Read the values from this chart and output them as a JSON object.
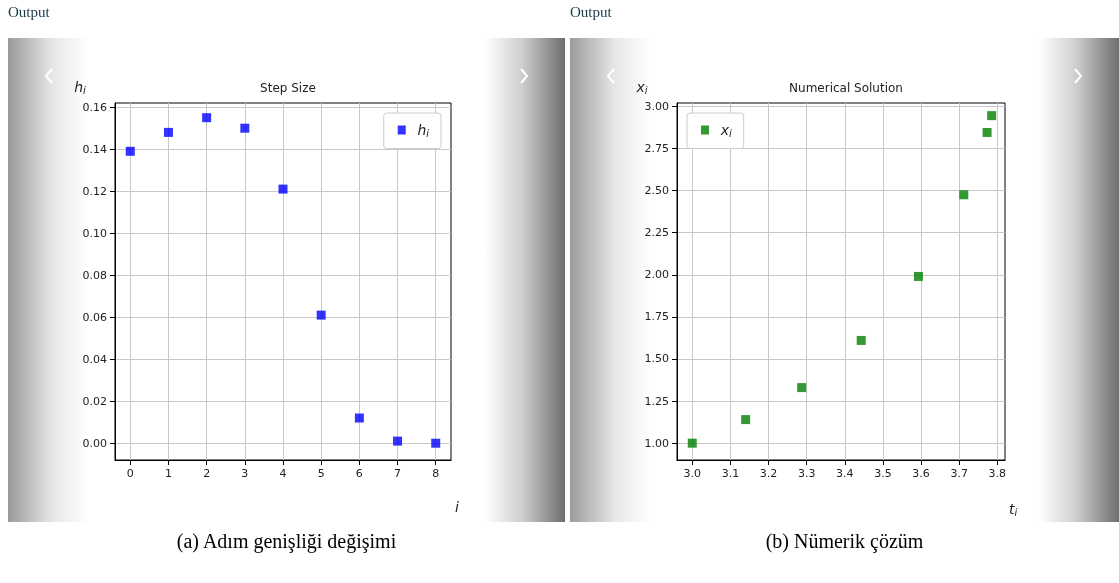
{
  "chart_data": [
    {
      "type": "scatter",
      "title": "Step Size",
      "xlabel": "i",
      "ylabel": "h$_{i}$",
      "annotations": [
        "Output",
        "(a) Adım genişliği değişimi"
      ],
      "x": [
        0,
        1,
        2,
        3,
        4,
        5,
        6,
        7,
        8
      ],
      "series": [
        {
          "name": "h$_{i}$",
          "color": "#0000ff",
          "values": [
            0.139,
            0.148,
            0.155,
            0.15,
            0.121,
            0.061,
            0.012,
            0.001,
            0.0
          ]
        }
      ],
      "xlim": [
        -0.4,
        8.4
      ],
      "xticks": [
        0,
        1,
        2,
        3,
        4,
        5,
        6,
        7,
        8
      ],
      "ylim": [
        -0.008,
        0.162
      ],
      "yticks": [
        {
          "value": 0,
          "label": "0.00"
        },
        {
          "value": 0.02,
          "label": "0.02"
        },
        {
          "value": 0.04,
          "label": "0.04"
        },
        {
          "value": 0.06,
          "label": "0.06"
        },
        {
          "value": 0.08,
          "label": "0.08"
        },
        {
          "value": 0.1,
          "label": "0.10"
        },
        {
          "value": 0.12,
          "label": "0.12"
        },
        {
          "value": 0.14,
          "label": "0.14"
        },
        {
          "value": 0.16,
          "label": "0.16"
        }
      ],
      "grid": true,
      "legend": "top right",
      "marker": "square"
    },
    {
      "type": "scatter",
      "title": "Numerical Solution",
      "xlabel": "t$_{i}$",
      "ylabel": "x$_{i}$",
      "annotations": [
        "Output",
        "(b) Nümerik çözüm"
      ],
      "x": [
        3.0,
        3.14,
        3.287,
        3.443,
        3.593,
        3.712,
        3.773,
        3.785
      ],
      "series": [
        {
          "name": "x$_{i}$",
          "color": "#008000",
          "values": [
            1.0,
            1.14,
            1.33,
            1.61,
            1.99,
            2.475,
            2.845,
            2.945
          ]
        }
      ],
      "xlim": [
        2.96,
        3.82
      ],
      "xticks": [
        {
          "value": 3.0,
          "label": "3.0"
        },
        {
          "value": 3.1,
          "label": "3.1"
        },
        {
          "value": 3.2,
          "label": "3.2"
        },
        {
          "value": 3.3,
          "label": "3.3"
        },
        {
          "value": 3.4,
          "label": "3.4"
        },
        {
          "value": 3.5,
          "label": "3.5"
        },
        {
          "value": 3.6,
          "label": "3.6"
        },
        {
          "value": 3.7,
          "label": "3.7"
        },
        {
          "value": 3.8,
          "label": "3.8"
        }
      ],
      "ylim": [
        0.9,
        3.02
      ],
      "yticks": [
        {
          "value": 1.0,
          "label": "1.00"
        },
        {
          "value": 1.25,
          "label": "1.25"
        },
        {
          "value": 1.5,
          "label": "1.50"
        },
        {
          "value": 1.75,
          "label": "1.75"
        },
        {
          "value": 2.0,
          "label": "2.00"
        },
        {
          "value": 2.25,
          "label": "2.25"
        },
        {
          "value": 2.5,
          "label": "2.50"
        },
        {
          "value": 2.75,
          "label": "2.75"
        },
        {
          "value": 3.0,
          "label": "3.00"
        }
      ],
      "grid": true,
      "legend": "top left",
      "marker": "square"
    }
  ]
}
